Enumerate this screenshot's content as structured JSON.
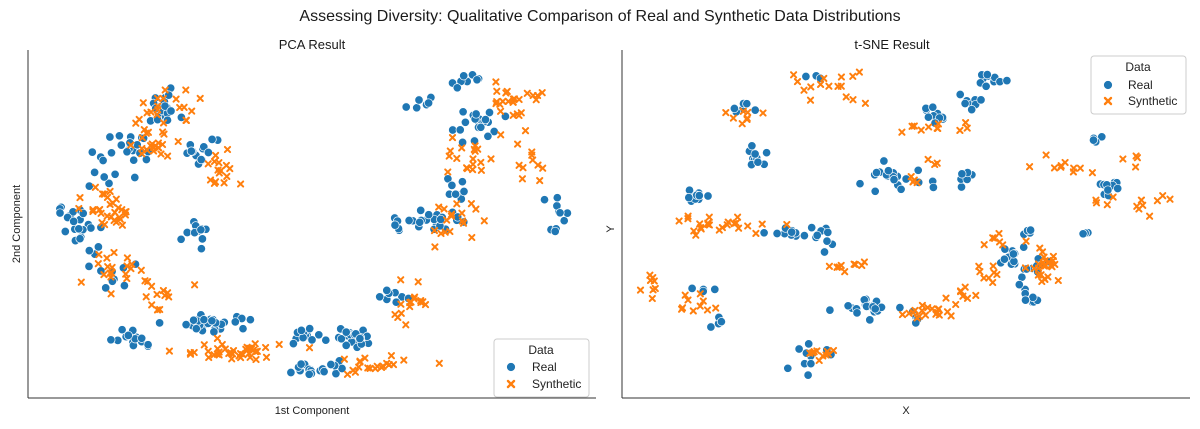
{
  "suptitle": "Assessing Diversity: Qualitative Comparison of Real and Synthetic Data Distributions",
  "colors": {
    "real": "#1f77b4",
    "synthetic": "#ff7f0e"
  },
  "chart_data": [
    {
      "type": "scatter",
      "title": "PCA Result",
      "xlabel": "1st Component",
      "ylabel": "2nd Component",
      "xlim": [
        0,
        100
      ],
      "ylim": [
        0,
        100
      ],
      "grid": false,
      "legend": {
        "title": "Data",
        "position": "bottom-right",
        "entries": [
          "Real",
          "Synthetic"
        ]
      },
      "series": [
        {
          "name": "Real",
          "marker": "circle",
          "clusters": [
            {
              "x": 23,
              "y": 85,
              "sx": 1.6,
              "sy": 2.2,
              "n": 22
            },
            {
              "x": 18,
              "y": 73,
              "sx": 2.4,
              "sy": 2.6,
              "n": 16
            },
            {
              "x": 30,
              "y": 72,
              "sx": 1.5,
              "sy": 2.0,
              "n": 14
            },
            {
              "x": 13,
              "y": 67,
              "sx": 2.2,
              "sy": 3.0,
              "n": 10
            },
            {
              "x": 8,
              "y": 50,
              "sx": 1.8,
              "sy": 4.0,
              "n": 24
            },
            {
              "x": 29,
              "y": 47,
              "sx": 1.2,
              "sy": 2.0,
              "n": 12
            },
            {
              "x": 14,
              "y": 35,
              "sx": 1.6,
              "sy": 3.0,
              "n": 10
            },
            {
              "x": 18,
              "y": 16,
              "sx": 2.2,
              "sy": 1.4,
              "n": 14
            },
            {
              "x": 33,
              "y": 21,
              "sx": 3.2,
              "sy": 1.4,
              "n": 30
            },
            {
              "x": 49,
              "y": 17,
              "sx": 2.4,
              "sy": 1.2,
              "n": 12
            },
            {
              "x": 51,
              "y": 7,
              "sx": 2.8,
              "sy": 1.2,
              "n": 18
            },
            {
              "x": 58,
              "y": 17,
              "sx": 2.0,
              "sy": 1.8,
              "n": 20
            },
            {
              "x": 65,
              "y": 29,
              "sx": 1.4,
              "sy": 2.0,
              "n": 8
            },
            {
              "x": 68,
              "y": 51,
              "sx": 2.2,
              "sy": 2.0,
              "n": 18
            },
            {
              "x": 75,
              "y": 62,
              "sx": 1.2,
              "sy": 2.0,
              "n": 8
            },
            {
              "x": 74,
              "y": 52,
              "sx": 1.4,
              "sy": 1.8,
              "n": 8
            },
            {
              "x": 80,
              "y": 80,
              "sx": 2.4,
              "sy": 3.0,
              "n": 20
            },
            {
              "x": 78,
              "y": 94,
              "sx": 1.8,
              "sy": 1.0,
              "n": 8
            },
            {
              "x": 70,
              "y": 87,
              "sx": 1.5,
              "sy": 1.0,
              "n": 6
            },
            {
              "x": 94,
              "y": 53,
              "sx": 0.8,
              "sy": 3.0,
              "n": 10
            }
          ]
        },
        {
          "name": "Synthetic",
          "marker": "x",
          "clusters": [
            {
              "x": 24,
              "y": 85,
              "sx": 3.0,
              "sy": 3.0,
              "n": 20
            },
            {
              "x": 21,
              "y": 75,
              "sx": 2.2,
              "sy": 2.2,
              "n": 22
            },
            {
              "x": 33,
              "y": 66,
              "sx": 1.6,
              "sy": 3.0,
              "n": 16
            },
            {
              "x": 14,
              "y": 55,
              "sx": 2.4,
              "sy": 4.0,
              "n": 30
            },
            {
              "x": 14,
              "y": 37,
              "sx": 2.2,
              "sy": 3.0,
              "n": 20
            },
            {
              "x": 22,
              "y": 30,
              "sx": 3.0,
              "sy": 2.0,
              "n": 12
            },
            {
              "x": 35,
              "y": 12,
              "sx": 5.0,
              "sy": 1.4,
              "n": 40
            },
            {
              "x": 60,
              "y": 8,
              "sx": 5.0,
              "sy": 2.0,
              "n": 20
            },
            {
              "x": 68,
              "y": 27,
              "sx": 2.2,
              "sy": 3.0,
              "n": 16
            },
            {
              "x": 75,
              "y": 51,
              "sx": 2.4,
              "sy": 3.0,
              "n": 18
            },
            {
              "x": 78,
              "y": 70,
              "sx": 1.6,
              "sy": 3.0,
              "n": 18
            },
            {
              "x": 87,
              "y": 88,
              "sx": 2.6,
              "sy": 3.5,
              "n": 26
            },
            {
              "x": 89,
              "y": 69,
              "sx": 1.4,
              "sy": 3.0,
              "n": 10
            }
          ]
        }
      ]
    },
    {
      "type": "scatter",
      "title": "t-SNE Result",
      "xlabel": "X",
      "ylabel": "Y",
      "xlim": [
        0,
        100
      ],
      "ylim": [
        0,
        100
      ],
      "grid": false,
      "legend": {
        "title": "Data",
        "position": "top-right",
        "entries": [
          "Real",
          "Synthetic"
        ]
      },
      "series": [
        {
          "name": "Real",
          "marker": "circle",
          "clusters": [
            {
              "x": 20,
              "y": 85,
              "sx": 1.2,
              "sy": 1.0,
              "n": 6
            },
            {
              "x": 22,
              "y": 71,
              "sx": 1.2,
              "sy": 1.5,
              "n": 10
            },
            {
              "x": 11,
              "y": 59,
              "sx": 1.2,
              "sy": 1.2,
              "n": 12
            },
            {
              "x": 28,
              "y": 48,
              "sx": 3.0,
              "sy": 1.2,
              "n": 12
            },
            {
              "x": 36,
              "y": 46,
              "sx": 1.2,
              "sy": 1.5,
              "n": 8
            },
            {
              "x": 41,
              "y": 25,
              "sx": 3.0,
              "sy": 1.4,
              "n": 20
            },
            {
              "x": 52,
              "y": 22,
              "sx": 2.0,
              "sy": 1.2,
              "n": 6
            },
            {
              "x": 48,
              "y": 64,
              "sx": 3.5,
              "sy": 2.0,
              "n": 22
            },
            {
              "x": 55,
              "y": 83,
              "sx": 1.2,
              "sy": 1.5,
              "n": 10
            },
            {
              "x": 62,
              "y": 87,
              "sx": 1.6,
              "sy": 1.0,
              "n": 8
            },
            {
              "x": 66,
              "y": 94,
              "sx": 1.6,
              "sy": 0.8,
              "n": 10
            },
            {
              "x": 61,
              "y": 64,
              "sx": 0.8,
              "sy": 1.2,
              "n": 6
            },
            {
              "x": 70,
              "y": 40,
              "sx": 1.5,
              "sy": 3.0,
              "n": 14
            },
            {
              "x": 75,
              "y": 28,
              "sx": 0.8,
              "sy": 0.8,
              "n": 4
            },
            {
              "x": 75,
              "y": 37,
              "sx": 1.5,
              "sy": 1.5,
              "n": 8
            },
            {
              "x": 72,
              "y": 48,
              "sx": 1.0,
              "sy": 1.0,
              "n": 4
            },
            {
              "x": 86,
              "y": 76,
              "sx": 0.8,
              "sy": 1.0,
              "n": 4
            },
            {
              "x": 89,
              "y": 62,
              "sx": 1.5,
              "sy": 1.5,
              "n": 10
            },
            {
              "x": 84,
              "y": 48,
              "sx": 0.6,
              "sy": 0.6,
              "n": 3
            },
            {
              "x": 12,
              "y": 31,
              "sx": 1.0,
              "sy": 0.8,
              "n": 4
            },
            {
              "x": 15,
              "y": 22,
              "sx": 1.0,
              "sy": 1.0,
              "n": 4
            },
            {
              "x": 32,
              "y": 10,
              "sx": 2.2,
              "sy": 2.0,
              "n": 10
            },
            {
              "x": 34,
              "y": 94,
              "sx": 2.0,
              "sy": 1.0,
              "n": 3
            },
            {
              "x": 73,
              "y": 31,
              "sx": 0.8,
              "sy": 1.0,
              "n": 4
            }
          ]
        },
        {
          "name": "Synthetic",
          "marker": "x",
          "clusters": [
            {
              "x": 35,
              "y": 92,
              "sx": 4.0,
              "sy": 2.5,
              "n": 16
            },
            {
              "x": 21,
              "y": 83,
              "sx": 2.0,
              "sy": 1.5,
              "n": 8
            },
            {
              "x": 15,
              "y": 50,
              "sx": 6.0,
              "sy": 1.5,
              "n": 24
            },
            {
              "x": 2,
              "y": 36,
              "sx": 0.8,
              "sy": 3.0,
              "n": 8
            },
            {
              "x": 11,
              "y": 27,
              "sx": 3.0,
              "sy": 2.0,
              "n": 10
            },
            {
              "x": 34,
              "y": 11,
              "sx": 2.0,
              "sy": 1.5,
              "n": 10
            },
            {
              "x": 38,
              "y": 37,
              "sx": 1.2,
              "sy": 1.0,
              "n": 6
            },
            {
              "x": 53,
              "y": 24,
              "sx": 2.0,
              "sy": 1.5,
              "n": 10
            },
            {
              "x": 57,
              "y": 24,
              "sx": 1.6,
              "sy": 1.5,
              "n": 8
            },
            {
              "x": 60,
              "y": 29,
              "sx": 2.0,
              "sy": 1.5,
              "n": 8
            },
            {
              "x": 66,
              "y": 36,
              "sx": 1.5,
              "sy": 1.5,
              "n": 8
            },
            {
              "x": 68,
              "y": 46,
              "sx": 1.2,
              "sy": 1.5,
              "n": 6
            },
            {
              "x": 76,
              "y": 39,
              "sx": 1.5,
              "sy": 3.0,
              "n": 26
            },
            {
              "x": 80,
              "y": 68,
              "sx": 3.0,
              "sy": 1.2,
              "n": 10
            },
            {
              "x": 93,
              "y": 70,
              "sx": 1.2,
              "sy": 1.2,
              "n": 4
            },
            {
              "x": 96,
              "y": 57,
              "sx": 2.0,
              "sy": 1.2,
              "n": 8
            },
            {
              "x": 88,
              "y": 58,
              "sx": 1.2,
              "sy": 1.2,
              "n": 4
            },
            {
              "x": 52,
              "y": 63,
              "sx": 1.2,
              "sy": 1.2,
              "n": 4
            },
            {
              "x": 56,
              "y": 69,
              "sx": 1.0,
              "sy": 1.0,
              "n": 3
            },
            {
              "x": 51,
              "y": 80,
              "sx": 1.2,
              "sy": 1.0,
              "n": 4
            },
            {
              "x": 56,
              "y": 80,
              "sx": 1.0,
              "sy": 1.0,
              "n": 4
            },
            {
              "x": 40,
              "y": 39,
              "sx": 1.5,
              "sy": 1.0,
              "n": 4
            },
            {
              "x": 62,
              "y": 80,
              "sx": 1.0,
              "sy": 0.8,
              "n": 3
            }
          ]
        }
      ]
    }
  ]
}
